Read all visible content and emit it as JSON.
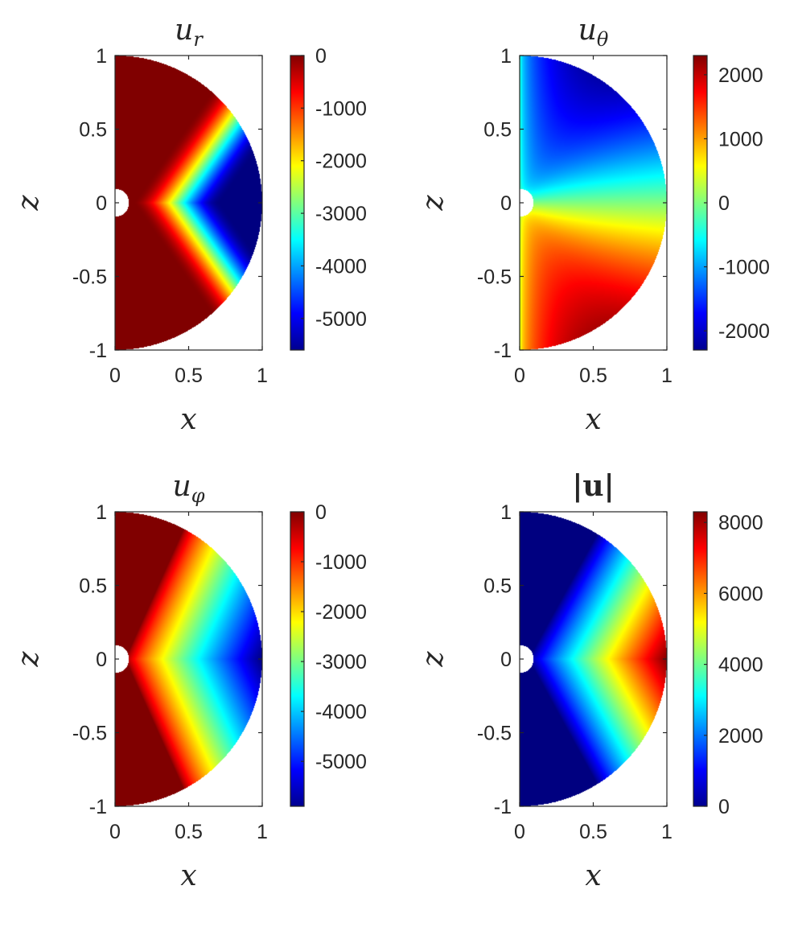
{
  "chart_data": [
    {
      "type": "heatmap",
      "title": "u_r",
      "title_base": "u",
      "title_sub": "r",
      "xlabel": "x",
      "ylabel": "z",
      "xlim": [
        0,
        1
      ],
      "ylim": [
        -1,
        1
      ],
      "x_ticks": [
        {
          "value": 0,
          "label": "0"
        },
        {
          "value": 0.5,
          "label": "0.5"
        },
        {
          "value": 1,
          "label": "1"
        }
      ],
      "y_ticks": [
        {
          "value": 1,
          "label": "1"
        },
        {
          "value": 0.5,
          "label": "0.5"
        },
        {
          "value": 0,
          "label": "0"
        },
        {
          "value": -0.5,
          "label": "-0.5"
        },
        {
          "value": -1,
          "label": "-1"
        }
      ],
      "colormap": "jet",
      "clim": [
        -5600,
        0
      ],
      "field": "u_r",
      "colorbar_ticks": [
        {
          "value": 0,
          "label": "0"
        },
        {
          "value": -1000,
          "label": "-1000"
        },
        {
          "value": -2000,
          "label": "-2000"
        },
        {
          "value": -3000,
          "label": "-3000"
        },
        {
          "value": -4000,
          "label": "-4000"
        },
        {
          "value": -5000,
          "label": "-5000"
        }
      ]
    },
    {
      "type": "heatmap",
      "title": "u_θ",
      "title_base": "u",
      "title_sub": "θ",
      "xlabel": "x",
      "ylabel": "z",
      "xlim": [
        0,
        1
      ],
      "ylim": [
        -1,
        1
      ],
      "x_ticks": [
        {
          "value": 0,
          "label": "0"
        },
        {
          "value": 0.5,
          "label": "0.5"
        },
        {
          "value": 1,
          "label": "1"
        }
      ],
      "y_ticks": [
        {
          "value": 1,
          "label": "1"
        },
        {
          "value": 0.5,
          "label": "0.5"
        },
        {
          "value": 0,
          "label": "0"
        },
        {
          "value": -0.5,
          "label": "-0.5"
        },
        {
          "value": -1,
          "label": "-1"
        }
      ],
      "colormap": "jet",
      "clim": [
        -2300,
        2300
      ],
      "field": "u_theta",
      "colorbar_ticks": [
        {
          "value": 2000,
          "label": "2000"
        },
        {
          "value": 1000,
          "label": "1000"
        },
        {
          "value": 0,
          "label": "0"
        },
        {
          "value": -1000,
          "label": "-1000"
        },
        {
          "value": -2000,
          "label": "-2000"
        }
      ]
    },
    {
      "type": "heatmap",
      "title": "u_φ",
      "title_base": "u",
      "title_sub": "φ",
      "xlabel": "x",
      "ylabel": "z",
      "xlim": [
        0,
        1
      ],
      "ylim": [
        -1,
        1
      ],
      "x_ticks": [
        {
          "value": 0,
          "label": "0"
        },
        {
          "value": 0.5,
          "label": "0.5"
        },
        {
          "value": 1,
          "label": "1"
        }
      ],
      "y_ticks": [
        {
          "value": 1,
          "label": "1"
        },
        {
          "value": 0.5,
          "label": "0.5"
        },
        {
          "value": 0,
          "label": "0"
        },
        {
          "value": -0.5,
          "label": "-0.5"
        },
        {
          "value": -1,
          "label": "-1"
        }
      ],
      "colormap": "jet",
      "clim": [
        -5900,
        0
      ],
      "field": "u_phi",
      "colorbar_ticks": [
        {
          "value": 0,
          "label": "0"
        },
        {
          "value": -1000,
          "label": "-1000"
        },
        {
          "value": -2000,
          "label": "-2000"
        },
        {
          "value": -3000,
          "label": "-3000"
        },
        {
          "value": -4000,
          "label": "-4000"
        },
        {
          "value": -5000,
          "label": "-5000"
        }
      ]
    },
    {
      "type": "heatmap",
      "title": "|u|",
      "title_base": "|u|",
      "title_sub": "",
      "title_bold": true,
      "xlabel": "x",
      "ylabel": "z",
      "xlim": [
        0,
        1
      ],
      "ylim": [
        -1,
        1
      ],
      "x_ticks": [
        {
          "value": 0,
          "label": "0"
        },
        {
          "value": 0.5,
          "label": "0.5"
        },
        {
          "value": 1,
          "label": "1"
        }
      ],
      "y_ticks": [
        {
          "value": 1,
          "label": "1"
        },
        {
          "value": 0.5,
          "label": "0.5"
        },
        {
          "value": 0,
          "label": "0"
        },
        {
          "value": -0.5,
          "label": "-0.5"
        },
        {
          "value": -1,
          "label": "-1"
        }
      ],
      "colormap": "jet",
      "clim": [
        0,
        8300
      ],
      "field": "u_mag",
      "colorbar_ticks": [
        {
          "value": 8000,
          "label": "8000"
        },
        {
          "value": 6000,
          "label": "6000"
        },
        {
          "value": 4000,
          "label": "4000"
        },
        {
          "value": 2000,
          "label": "2000"
        },
        {
          "value": 0,
          "label": "0"
        }
      ]
    }
  ]
}
